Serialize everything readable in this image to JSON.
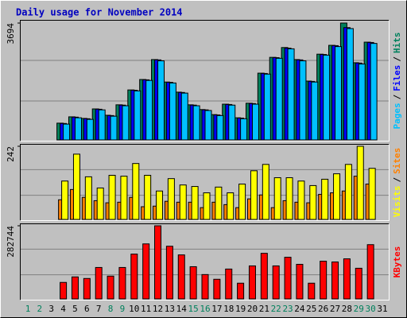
{
  "chart_data": [
    {
      "type": "bar",
      "title": "Daily usage for November 2014",
      "categories": [
        "1",
        "2",
        "3",
        "4",
        "5",
        "6",
        "7",
        "8",
        "9",
        "10",
        "11",
        "12",
        "13",
        "14",
        "15",
        "16",
        "17",
        "18",
        "19",
        "20",
        "21",
        "22",
        "23",
        "24",
        "25",
        "26",
        "27",
        "28",
        "29",
        "30",
        "31"
      ],
      "category_colors": [
        "#00805c",
        "#00805c",
        "#000000",
        "#000000",
        "#000000",
        "#000000",
        "#000000",
        "#00805c",
        "#00805c",
        "#000000",
        "#000000",
        "#000000",
        "#000000",
        "#000000",
        "#00805c",
        "#00805c",
        "#000000",
        "#000000",
        "#000000",
        "#000000",
        "#000000",
        "#00805c",
        "#00805c",
        "#000000",
        "#000000",
        "#000000",
        "#000000",
        "#000000",
        "#00805c",
        "#00805c",
        "#000000"
      ],
      "legend_separator": "/",
      "series": [
        {
          "name": "Hits",
          "color": "#00805c",
          "values": [
            0,
            0,
            0,
            530,
            730,
            680,
            980,
            780,
            1110,
            1580,
            1910,
            2540,
            1830,
            1510,
            1110,
            960,
            800,
            1130,
            700,
            1160,
            2110,
            2610,
            2920,
            2540,
            1860,
            2710,
            2990,
            3694,
            2440,
            3090,
            0
          ]
        },
        {
          "name": "Files",
          "color": "#0000ff",
          "values": [
            0,
            0,
            0,
            520,
            720,
            670,
            970,
            770,
            1100,
            1570,
            1900,
            2530,
            1820,
            1500,
            1100,
            950,
            790,
            1120,
            690,
            1150,
            2100,
            2600,
            2900,
            2530,
            1850,
            2700,
            2980,
            3550,
            2430,
            3080,
            0
          ]
        },
        {
          "name": "Pages",
          "color": "#00c0ff",
          "values": [
            0,
            0,
            0,
            500,
            700,
            650,
            950,
            750,
            1080,
            1550,
            1880,
            2500,
            1800,
            1480,
            1080,
            930,
            770,
            1100,
            670,
            1130,
            2080,
            2580,
            2880,
            2500,
            1830,
            2680,
            2950,
            3520,
            2400,
            3050,
            0
          ]
        }
      ],
      "ylim": [
        0,
        3694
      ],
      "yticks": [
        3694
      ]
    },
    {
      "type": "bar",
      "legend_separator": "/",
      "series": [
        {
          "name": "Sites",
          "color": "#ff8000",
          "values": [
            0,
            0,
            0,
            65,
            99,
            73,
            62,
            55,
            57,
            73,
            42,
            44,
            60,
            57,
            57,
            39,
            57,
            49,
            39,
            68,
            81,
            39,
            62,
            57,
            55,
            83,
            88,
            94,
            143,
            117,
            0
          ]
        },
        {
          "name": "Visits",
          "color": "#ffff00",
          "values": [
            0,
            0,
            0,
            127,
            216,
            141,
            104,
            146,
            143,
            185,
            146,
            94,
            135,
            114,
            109,
            88,
            107,
            88,
            117,
            161,
            182,
            138,
            138,
            127,
            112,
            133,
            151,
            182,
            242,
            169,
            0
          ]
        }
      ],
      "ylim": [
        0,
        242
      ],
      "yticks": [
        242
      ]
    },
    {
      "type": "bar",
      "series": [
        {
          "name": "KBytes",
          "color": "#ff0000",
          "values": [
            0,
            0,
            0,
            63800,
            85100,
            79000,
            121600,
            88200,
            121600,
            173300,
            212800,
            282744,
            203700,
            170200,
            124600,
            94200,
            76000,
            115500,
            60800,
            127700,
            176300,
            127700,
            161100,
            133800,
            60800,
            145900,
            142900,
            155000,
            118600,
            209800,
            0
          ]
        }
      ],
      "ylim": [
        0,
        282744
      ],
      "yticks": [
        282744
      ]
    }
  ]
}
